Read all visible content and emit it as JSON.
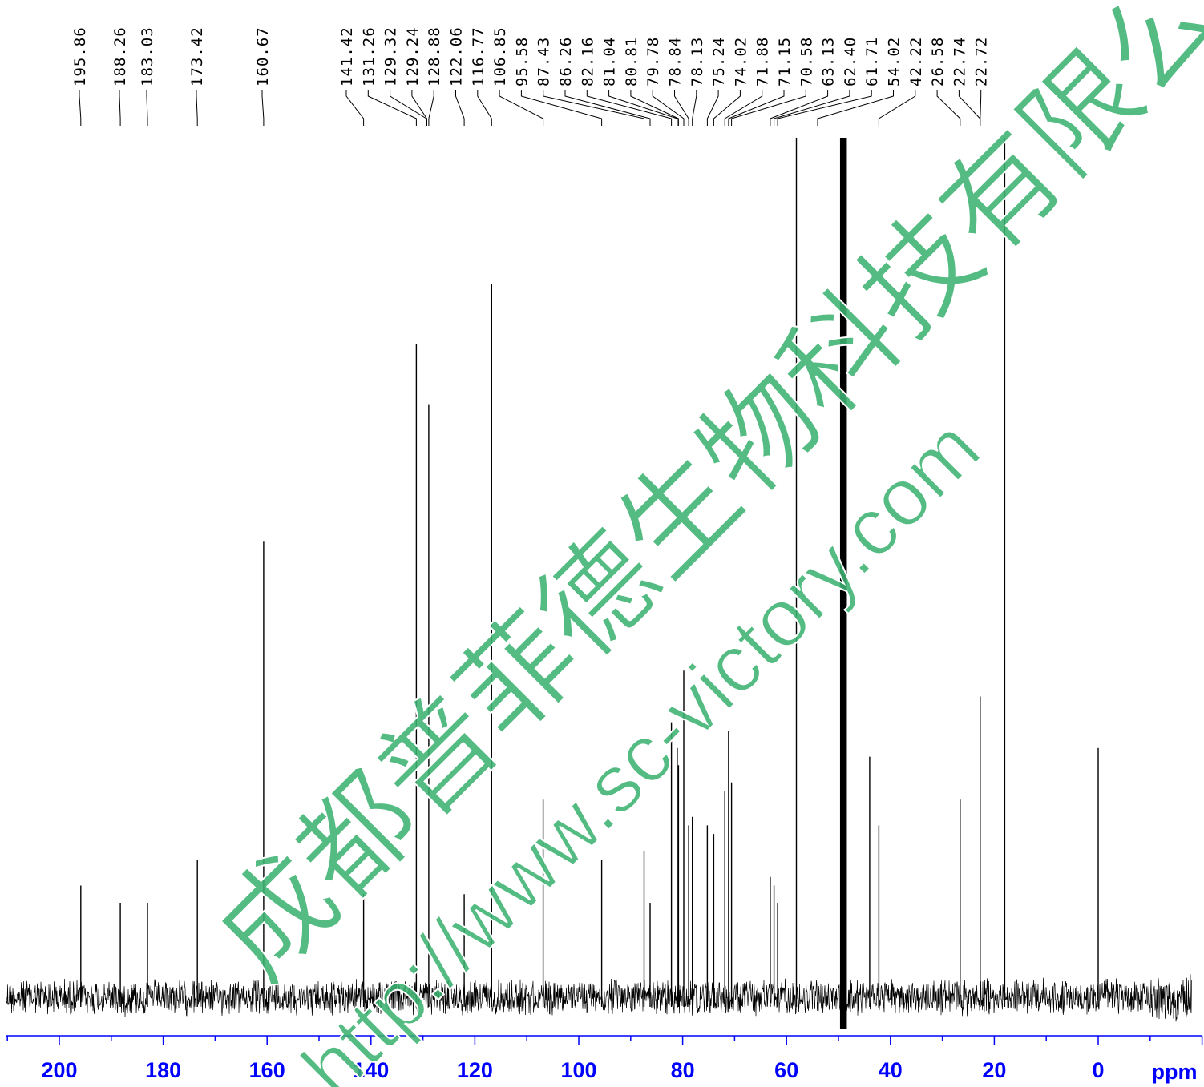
{
  "chart_data": {
    "type": "line",
    "xlabel": "ppm",
    "x_ticks": [
      "200",
      "180",
      "160",
      "140",
      "120",
      "100",
      "80",
      "60",
      "40",
      "20",
      "0"
    ],
    "x_tick_values": [
      200,
      180,
      160,
      140,
      120,
      100,
      80,
      60,
      40,
      20,
      0
    ],
    "x_range": [
      210,
      -18
    ],
    "x_reversed": true,
    "peak_labels": [
      "195.86",
      "188.26",
      "183.03",
      "173.42",
      "160.67",
      "141.42",
      "131.26",
      "129.32",
      "129.24",
      "128.88",
      "122.06",
      "116.77",
      "106.85",
      "95.58",
      "87.43",
      "86.26",
      "82.16",
      "81.04",
      "80.81",
      "79.78",
      "78.84",
      "78.13",
      "75.24",
      "74.02",
      "71.88",
      "71.15",
      "70.58",
      "63.13",
      "62.40",
      "61.71",
      "54.02",
      "42.22",
      "26.58",
      "22.74",
      "22.72"
    ],
    "peak_positions_ppm": [
      195.86,
      188.26,
      183.03,
      173.42,
      160.67,
      141.42,
      131.26,
      129.32,
      129.24,
      128.88,
      122.06,
      116.77,
      106.85,
      95.58,
      87.43,
      86.26,
      82.16,
      81.04,
      80.81,
      79.78,
      78.84,
      78.13,
      75.24,
      74.02,
      71.88,
      71.15,
      70.58,
      63.13,
      62.4,
      61.71,
      54.02,
      42.22,
      26.58,
      22.74,
      22.72
    ],
    "spectrum_peaks": [
      {
        "ppm": 195.86,
        "intensity": 0.13
      },
      {
        "ppm": 188.26,
        "intensity": 0.11
      },
      {
        "ppm": 183.03,
        "intensity": 0.11
      },
      {
        "ppm": 173.42,
        "intensity": 0.16
      },
      {
        "ppm": 160.67,
        "intensity": 0.53
      },
      {
        "ppm": 141.42,
        "intensity": 0.12
      },
      {
        "ppm": 131.26,
        "intensity": 0.76
      },
      {
        "ppm": 128.88,
        "intensity": 0.69
      },
      {
        "ppm": 122.06,
        "intensity": 0.12
      },
      {
        "ppm": 116.77,
        "intensity": 0.83
      },
      {
        "ppm": 106.85,
        "intensity": 0.23
      },
      {
        "ppm": 95.58,
        "intensity": 0.16
      },
      {
        "ppm": 87.43,
        "intensity": 0.17
      },
      {
        "ppm": 86.26,
        "intensity": 0.11
      },
      {
        "ppm": 82.16,
        "intensity": 0.32
      },
      {
        "ppm": 81.04,
        "intensity": 0.29
      },
      {
        "ppm": 80.81,
        "intensity": 0.27
      },
      {
        "ppm": 79.78,
        "intensity": 0.38
      },
      {
        "ppm": 78.84,
        "intensity": 0.2
      },
      {
        "ppm": 78.13,
        "intensity": 0.21
      },
      {
        "ppm": 75.24,
        "intensity": 0.2
      },
      {
        "ppm": 74.02,
        "intensity": 0.19
      },
      {
        "ppm": 71.88,
        "intensity": 0.24
      },
      {
        "ppm": 71.15,
        "intensity": 0.31
      },
      {
        "ppm": 70.58,
        "intensity": 0.25
      },
      {
        "ppm": 63.13,
        "intensity": 0.14
      },
      {
        "ppm": 62.4,
        "intensity": 0.13
      },
      {
        "ppm": 61.71,
        "intensity": 0.11
      },
      {
        "ppm": 58.1,
        "intensity": 1.0
      },
      {
        "ppm": 49.0,
        "intensity": 1.0
      },
      {
        "ppm": 44.0,
        "intensity": 0.28
      },
      {
        "ppm": 42.22,
        "intensity": 0.2
      },
      {
        "ppm": 26.58,
        "intensity": 0.23
      },
      {
        "ppm": 22.72,
        "intensity": 0.35
      },
      {
        "ppm": 18.0,
        "intensity": 1.0
      },
      {
        "ppm": 0.0,
        "intensity": 0.29
      }
    ],
    "grid": false,
    "legend": "none"
  },
  "watermark": {
    "line1": "成都普菲德生物科技有限公司",
    "line2": "http://www.sc-victory.com"
  },
  "colors": {
    "axis": "#0000ff",
    "spectrum": "#000000",
    "watermark": "#3cb371"
  }
}
